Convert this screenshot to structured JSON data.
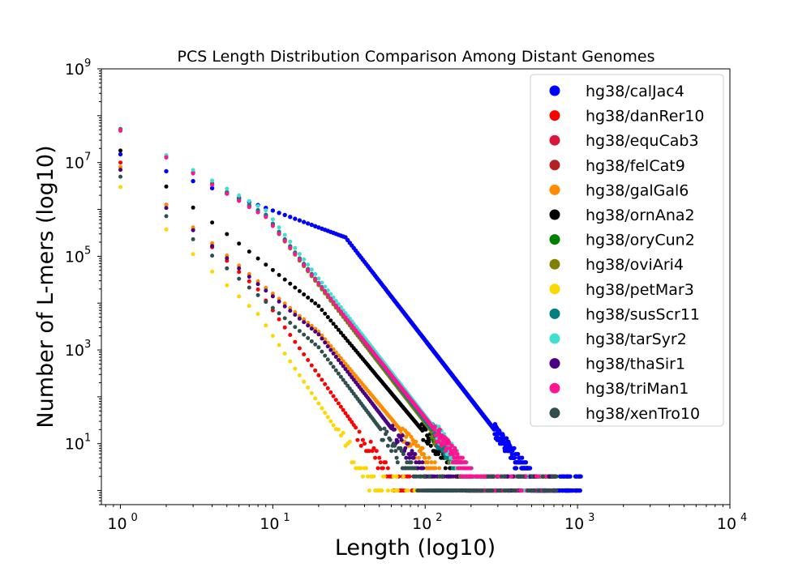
{
  "chart_data": {
    "type": "scatter",
    "title": "PCS Length Distribution Comparison Among Distant Genomes",
    "xlabel": "Length (log10)",
    "ylabel": "Number of L-mers (log10)",
    "xscale": "log",
    "yscale": "log",
    "xlim": [
      0.75,
      10000
    ],
    "ylim": [
      0.5,
      1000000000
    ],
    "x_ticks": [
      {
        "value": 1,
        "label": "10",
        "exp": "0"
      },
      {
        "value": 10,
        "label": "10",
        "exp": "1"
      },
      {
        "value": 100,
        "label": "10",
        "exp": "2"
      },
      {
        "value": 1000,
        "label": "10",
        "exp": "3"
      },
      {
        "value": 10000,
        "label": "10",
        "exp": "4"
      }
    ],
    "y_ticks": [
      {
        "value": 10,
        "label": "10",
        "exp": "1"
      },
      {
        "value": 1000,
        "label": "10",
        "exp": "3"
      },
      {
        "value": 100000,
        "label": "10",
        "exp": "5"
      },
      {
        "value": 10000000,
        "label": "10",
        "exp": "7"
      },
      {
        "value": 1000000000,
        "label": "10",
        "exp": "9"
      }
    ],
    "legend_position": "top-right",
    "grid": false,
    "series": [
      {
        "name": "hg38/calJac4",
        "color": "#0000ff",
        "y1": 15000000,
        "bend": 30,
        "slope1": 1.2,
        "slope2": 4.2,
        "maxlen": 1050
      },
      {
        "name": "hg38/danRer10",
        "color": "#ff0000",
        "y1": 10000000,
        "bend": 8,
        "slope1": 3.0,
        "slope2": 4.6,
        "maxlen": 720
      },
      {
        "name": "hg38/equCab3",
        "color": "#dc143c",
        "y1": 50000000,
        "bend": 9,
        "slope1": 1.9,
        "slope2": 4.2,
        "maxlen": 700
      },
      {
        "name": "hg38/felCat9",
        "color": "#b22222",
        "y1": 48000000,
        "bend": 9,
        "slope1": 1.9,
        "slope2": 4.2,
        "maxlen": 680
      },
      {
        "name": "hg38/galGal6",
        "color": "#ff8c00",
        "y1": 8000000,
        "bend": 20,
        "slope1": 2.7,
        "slope2": 3.9,
        "maxlen": 720
      },
      {
        "name": "hg38/ornAna2",
        "color": "#000000",
        "y1": 18000000,
        "bend": 20,
        "slope1": 2.55,
        "slope2": 3.9,
        "maxlen": 730
      },
      {
        "name": "hg38/oryCun2",
        "color": "#008000",
        "y1": 52000000,
        "bend": 9,
        "slope1": 1.95,
        "slope2": 4.2,
        "maxlen": 700
      },
      {
        "name": "hg38/oviAri4",
        "color": "#808000",
        "y1": 50000000,
        "bend": 9,
        "slope1": 1.95,
        "slope2": 4.2,
        "maxlen": 700
      },
      {
        "name": "hg38/petMar3",
        "color": "#ffd700",
        "y1": 3000000,
        "bend": 8,
        "slope1": 3.0,
        "slope2": 4.8,
        "maxlen": 650
      },
      {
        "name": "hg38/susScr11",
        "color": "#008080",
        "y1": 50000000,
        "bend": 9,
        "slope1": 1.9,
        "slope2": 4.2,
        "maxlen": 700
      },
      {
        "name": "hg38/tarSyr2",
        "color": "#40e0d0",
        "y1": 50000000,
        "bend": 9,
        "slope1": 1.8,
        "slope2": 4.2,
        "maxlen": 700
      },
      {
        "name": "hg38/thaSir1",
        "color": "#4b0082",
        "y1": 7000000,
        "bend": 20,
        "slope1": 2.7,
        "slope2": 4.2,
        "maxlen": 720
      },
      {
        "name": "hg38/triMan1",
        "color": "#ff1493",
        "y1": 50000000,
        "bend": 9,
        "slope1": 1.95,
        "slope2": 4.1,
        "maxlen": 700
      },
      {
        "name": "hg38/xenTro10",
        "color": "#2f4f4f",
        "y1": 5000000,
        "bend": 20,
        "slope1": 2.8,
        "slope2": 4.3,
        "maxlen": 730
      }
    ]
  }
}
